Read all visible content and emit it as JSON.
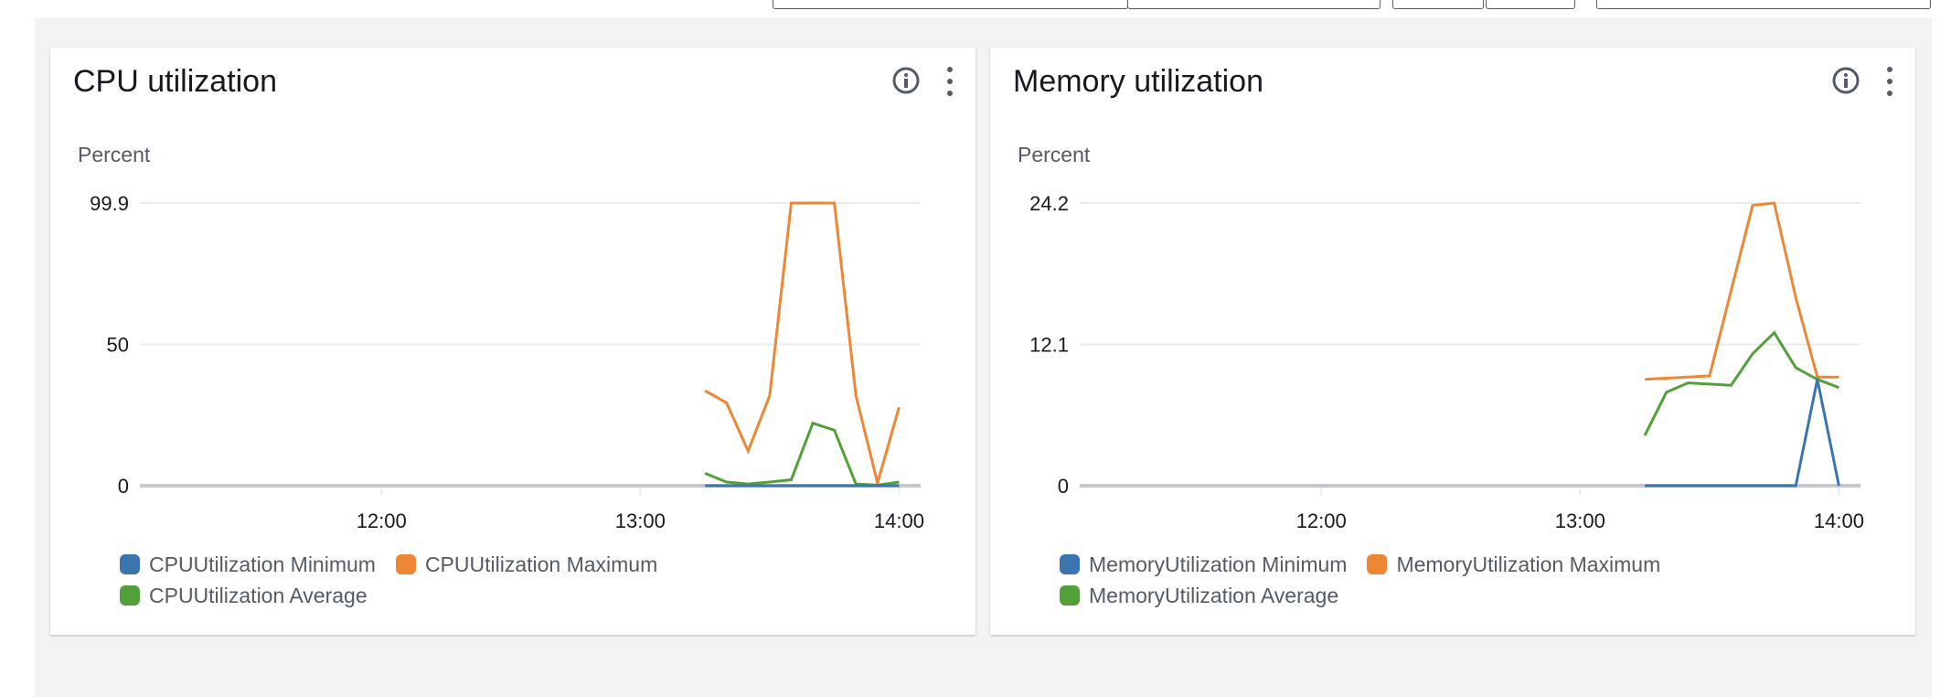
{
  "colors": {
    "minimum": "#3a75b0",
    "maximum": "#ee8734",
    "average": "#52a03a",
    "grid": "#e9ebed",
    "axis": "#c6c6cd"
  },
  "widgets": [
    {
      "title": "CPU utilization",
      "icons": [
        "info-icon",
        "more-vertical-icon"
      ],
      "chart_data": {
        "type": "line",
        "ylabel": "Percent",
        "ylim": [
          0,
          99.9
        ],
        "yticks": [
          "0",
          "50",
          "99.9"
        ],
        "ytick_values": [
          0,
          50,
          99.9
        ],
        "xlim": [
          "11:04",
          "14:05"
        ],
        "xticks": [
          "12:00",
          "13:00",
          "14:00"
        ],
        "grid": true,
        "legend_position": "bottom",
        "x": [
          "13:15",
          "13:20",
          "13:25",
          "13:30",
          "13:35",
          "13:40",
          "13:45",
          "13:50",
          "13:55",
          "14:00"
        ],
        "series": [
          {
            "name": "CPUUtilization Minimum",
            "color_key": "minimum",
            "values": [
              0,
              0,
              0,
              0,
              0,
              0,
              0,
              0,
              0,
              0
            ]
          },
          {
            "name": "CPUUtilization Maximum",
            "color_key": "maximum",
            "values": [
              33.6,
              29.3,
              12.3,
              31.8,
              99.9,
              99.9,
              99.9,
              31.8,
              1.0,
              27.7
            ]
          },
          {
            "name": "CPUUtilization Average",
            "color_key": "average",
            "values": [
              4.4,
              1.3,
              0.6,
              1.3,
              2.1,
              22.1,
              19.6,
              0.6,
              0.2,
              1.3
            ]
          }
        ]
      }
    },
    {
      "title": "Memory utilization",
      "icons": [
        "info-icon",
        "more-vertical-icon"
      ],
      "chart_data": {
        "type": "line",
        "ylabel": "Percent",
        "ylim": [
          0,
          24.2
        ],
        "yticks": [
          "0",
          "12.1",
          "24.2"
        ],
        "ytick_values": [
          0,
          12.1,
          24.2
        ],
        "xlim": [
          "11:04",
          "14:05"
        ],
        "xticks": [
          "12:00",
          "13:00",
          "14:00"
        ],
        "grid": true,
        "legend_position": "bottom",
        "x": [
          "13:15",
          "13:20",
          "13:25",
          "13:30",
          "13:35",
          "13:40",
          "13:45",
          "13:50",
          "13:55",
          "14:00"
        ],
        "series": [
          {
            "name": "MemoryUtilization Minimum",
            "color_key": "minimum",
            "values": [
              0,
              0,
              0,
              0,
              0,
              0,
              0,
              0,
              9.1,
              0
            ]
          },
          {
            "name": "MemoryUtilization Maximum",
            "color_key": "maximum",
            "values": [
              9.1,
              9.2,
              9.3,
              9.4,
              16.7,
              24.0,
              24.2,
              16.1,
              9.3,
              9.3
            ]
          },
          {
            "name": "MemoryUtilization Average",
            "color_key": "average",
            "values": [
              4.3,
              8.0,
              8.8,
              8.7,
              8.6,
              11.3,
              13.1,
              10.1,
              9.1,
              8.4
            ]
          }
        ]
      }
    }
  ]
}
